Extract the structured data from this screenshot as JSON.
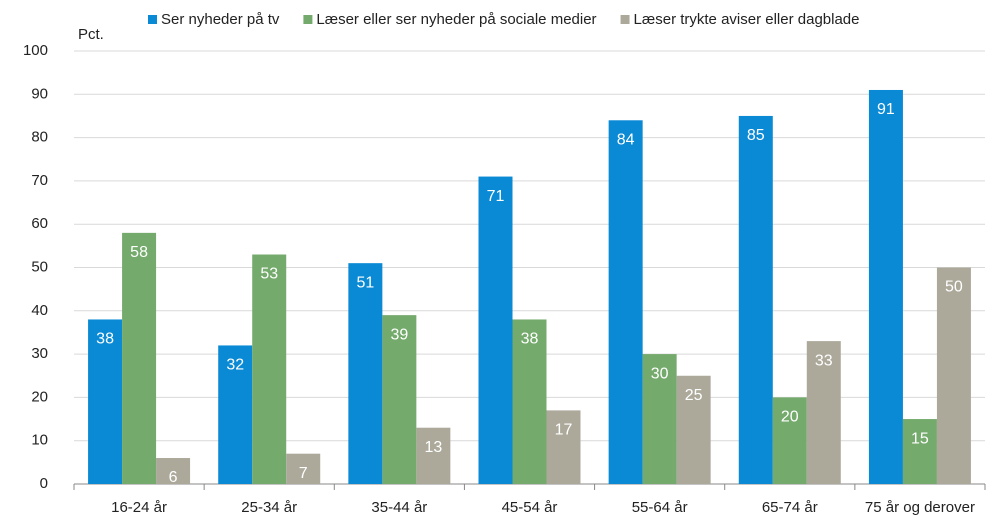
{
  "chart_data": {
    "type": "bar",
    "y_label": "Pct.",
    "categories": [
      "16-24 år",
      "25-34 år",
      "35-44 år",
      "45-54 år",
      "55-64 år",
      "65-74 år",
      "75 år og derover"
    ],
    "series": [
      {
        "name": "Ser nyheder på tv",
        "color": "#0a89d4",
        "values": [
          38,
          32,
          51,
          71,
          84,
          85,
          91
        ]
      },
      {
        "name": "Læser eller ser nyheder på sociale medier",
        "color": "#74aa6c",
        "values": [
          58,
          53,
          39,
          38,
          30,
          20,
          15
        ]
      },
      {
        "name": "Læser trykte aviser eller dagblade",
        "color": "#aca99b",
        "values": [
          6,
          7,
          13,
          17,
          25,
          33,
          50
        ]
      }
    ],
    "ylim": [
      0,
      100
    ],
    "yticks": [
      0,
      10,
      20,
      30,
      40,
      50,
      60,
      70,
      80,
      90,
      100
    ],
    "grid": true,
    "legend": "top"
  }
}
